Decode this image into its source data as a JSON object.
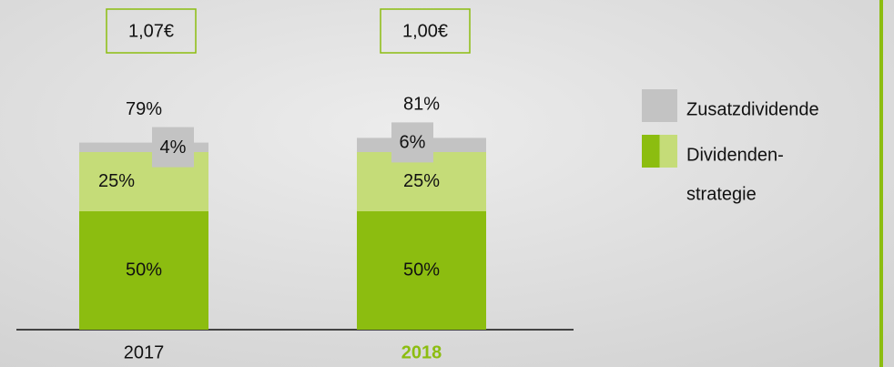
{
  "chart_data": {
    "type": "stacked_bar",
    "categories": [
      "2017",
      "2018"
    ],
    "highlight": {
      "index": 1,
      "color": "#8cbd10"
    },
    "series": [
      {
        "color": "#8cbd10",
        "values": [
          50,
          50
        ],
        "value_labels": [
          "50%",
          "50%"
        ]
      },
      {
        "color": "#c5dc78",
        "values": [
          25,
          25
        ],
        "value_labels": [
          "25%",
          "25%"
        ]
      },
      {
        "color": "#c3c3c3",
        "values": [
          4,
          6
        ],
        "value_labels": [
          "4%",
          "6%"
        ]
      }
    ],
    "totals": {
      "values": [
        79,
        81
      ],
      "value_labels": [
        "79%",
        "81%"
      ]
    },
    "price_labels": [
      "1,07€",
      "1,00€"
    ],
    "price_box_color": "#8cbd10",
    "legend": [
      {
        "lines": [
          "Zusatzdividende"
        ],
        "colors": [
          "#c3c3c3"
        ]
      },
      {
        "lines": [
          "Dividenden-",
          "strategie"
        ],
        "colors": [
          "#8cbd10",
          "#c5dc78"
        ]
      }
    ],
    "accent_color": "#8cbd10"
  }
}
